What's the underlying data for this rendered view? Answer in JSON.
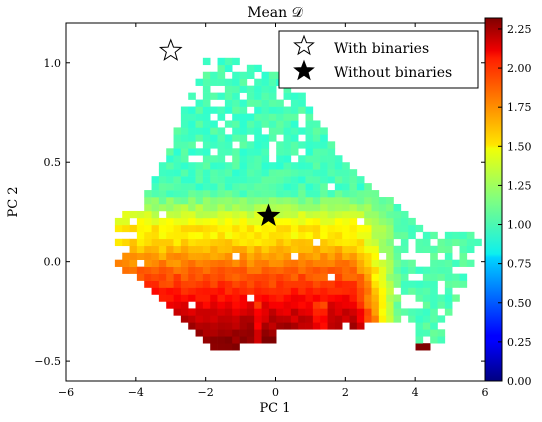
{
  "chart_data": {
    "type": "heatmap",
    "title": "Mean 𝒟",
    "xlabel": "PC 1",
    "ylabel": "PC 2",
    "xlim": [
      -6,
      6
    ],
    "ylim": [
      -0.6,
      1.2
    ],
    "xticks": [
      -6,
      -4,
      -2,
      0,
      2,
      4,
      6
    ],
    "yticks": [
      -0.5,
      0.0,
      0.5,
      1.0
    ],
    "xtick_labels": [
      "−6",
      "−4",
      "−2",
      "0",
      "2",
      "4",
      "6"
    ],
    "ytick_labels": [
      "−0.5",
      "0.0",
      "0.5",
      "1.0"
    ],
    "colorbar": {
      "range": [
        0.0,
        2.32
      ],
      "ticks": [
        0.0,
        0.25,
        0.5,
        0.75,
        1.0,
        1.25,
        1.5,
        1.75,
        2.0,
        2.25
      ],
      "tick_labels": [
        "0.00",
        "0.25",
        "0.50",
        "0.75",
        "1.00",
        "1.25",
        "1.50",
        "1.75",
        "2.00",
        "2.25"
      ],
      "colormap": "jet"
    },
    "heatmap_summary": {
      "bin_width_x": 0.21,
      "bin_width_y": 0.035,
      "description_regions": [
        {
          "pc2_min": 0.35,
          "value": 1.05
        },
        {
          "pc2_min": 0.15,
          "pc2_max": 0.35,
          "value_range": [
            1.1,
            1.55
          ]
        },
        {
          "pc2_min": -0.05,
          "pc2_max": 0.15,
          "value_range": [
            1.5,
            1.8
          ]
        },
        {
          "pc2_min": -0.25,
          "pc2_max": -0.05,
          "value_range": [
            1.8,
            2.1
          ]
        },
        {
          "pc2_max": -0.25,
          "value_range": [
            2.1,
            2.3
          ]
        }
      ]
    },
    "markers": [
      {
        "label": "With binaries",
        "x": -3.0,
        "y": 1.06,
        "style": "open-star"
      },
      {
        "label": "Without binaries",
        "x": -0.2,
        "y": 0.23,
        "style": "filled-star"
      }
    ],
    "legend": {
      "placement": "top-right",
      "entries": [
        "With binaries",
        "Without binaries"
      ]
    }
  }
}
